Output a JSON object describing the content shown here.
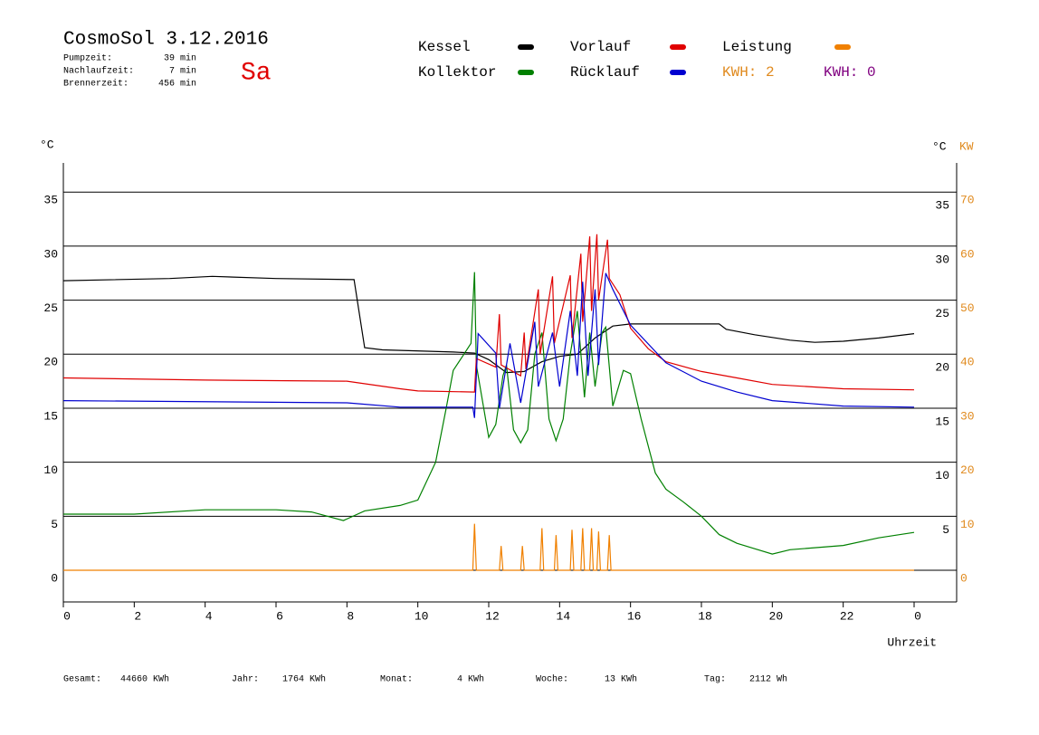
{
  "chart_data": {
    "type": "line",
    "title": "CosmoSol 3.12.2016",
    "weekday": "Sa",
    "stats": [
      {
        "label": "Pumpzeit:",
        "value": "39 min"
      },
      {
        "label": "Nachlaufzeit:",
        "value": "7 min"
      },
      {
        "label": "Brennerzeit:",
        "value": "456 min"
      }
    ],
    "totals": [
      {
        "label": "Gesamt:",
        "value": "44660 KWh"
      },
      {
        "label": "Jahr:",
        "value": "1764 KWh"
      },
      {
        "label": "Monat:",
        "value": "4 KWh"
      },
      {
        "label": "Woche:",
        "value": "13 KWh"
      },
      {
        "label": "Tag:",
        "value": "2112 Wh"
      }
    ],
    "kwh": [
      {
        "text": "KWH: 2",
        "color": "#e08a1e"
      },
      {
        "text": "KWH: 0",
        "color": "#800080"
      }
    ],
    "y_label": "°C",
    "y_right_label": "°C",
    "y2_label": "KW",
    "x_label": "Uhrzeit",
    "xlim": [
      0,
      25.2
    ],
    "xticks": [
      0,
      2,
      4,
      6,
      8,
      10,
      12,
      14,
      16,
      18,
      20,
      22,
      {
        "value": 24,
        "label": "0"
      }
    ],
    "ylim": [
      -2.93,
      37.7
    ],
    "yticks": [
      0,
      5,
      10,
      15,
      20,
      25,
      30,
      35
    ],
    "y_right_ticks": [
      5,
      10,
      15,
      20,
      25,
      30,
      35
    ],
    "y2lim": [
      -5.86,
      75.4
    ],
    "y2ticks": [
      0,
      10,
      20,
      30,
      40,
      50,
      60,
      70
    ],
    "y2_color": "#e08a1e",
    "grid": true,
    "series": [
      {
        "name": "Kessel",
        "color": "#000000",
        "x": [
          0,
          3,
          4.2,
          6,
          8.2,
          8.5,
          9,
          11,
          11.6,
          12,
          12.5,
          13,
          13.5,
          14,
          14.5,
          15,
          15.5,
          16,
          17,
          18.5,
          18.7,
          19.5,
          20.5,
          21.2,
          22,
          23,
          24
        ],
        "values": [
          26.8,
          27.0,
          27.2,
          27.0,
          26.9,
          20.6,
          20.4,
          20.2,
          20.1,
          19.5,
          18.3,
          18.4,
          19.3,
          19.8,
          20.0,
          21.5,
          22.6,
          22.8,
          22.8,
          22.8,
          22.3,
          21.8,
          21.3,
          21.1,
          21.2,
          21.5,
          21.9
        ]
      },
      {
        "name": "Kollektor",
        "color": "#008000",
        "x": [
          0,
          2,
          4,
          6,
          7,
          7.9,
          8.5,
          9.5,
          10,
          10.5,
          10.8,
          11,
          11.3,
          11.5,
          11.6,
          11.65,
          12,
          12.2,
          12.4,
          12.5,
          12.7,
          12.9,
          13.1,
          13.3,
          13.5,
          13.7,
          13.9,
          14.1,
          14.3,
          14.5,
          14.7,
          14.85,
          15,
          15.2,
          15.3,
          15.5,
          15.8,
          16,
          16.3,
          16.7,
          17,
          17.5,
          18,
          18.5,
          19,
          19.5,
          20,
          20.5,
          22,
          23,
          24
        ],
        "values": [
          5.2,
          5.2,
          5.6,
          5.6,
          5.4,
          4.6,
          5.5,
          6.0,
          6.5,
          10.0,
          15.0,
          18.5,
          20.0,
          21.0,
          27.6,
          19.0,
          12.3,
          13.5,
          18.0,
          19.0,
          13.0,
          11.8,
          13.0,
          20.0,
          22.0,
          14.0,
          12.0,
          14.0,
          20.0,
          24.0,
          16.0,
          22.0,
          17.0,
          22.0,
          22.5,
          15.2,
          18.5,
          18.2,
          14.0,
          9.0,
          7.5,
          6.3,
          5.0,
          3.3,
          2.5,
          2.0,
          1.5,
          1.9,
          2.3,
          3.0,
          3.5
        ]
      },
      {
        "name": "Vorlauf",
        "color": "#e00000",
        "x": [
          0,
          4,
          8,
          9.5,
          10,
          11.6,
          11.65,
          12.2,
          12.3,
          12.35,
          12.9,
          13.0,
          13.05,
          13.4,
          13.45,
          13.8,
          13.85,
          14.3,
          14.35,
          14.6,
          14.65,
          14.85,
          14.9,
          15.05,
          15.1,
          15.35,
          15.4,
          15.7,
          16,
          16.5,
          17,
          18,
          19,
          20,
          22,
          24
        ],
        "values": [
          17.8,
          17.6,
          17.5,
          16.8,
          16.6,
          16.5,
          19.6,
          18.8,
          23.7,
          19.0,
          18.0,
          22.0,
          18.6,
          26.0,
          20.0,
          27.2,
          21.0,
          27.3,
          21.5,
          29.3,
          23.0,
          30.9,
          24.0,
          31.1,
          25.0,
          30.6,
          27.0,
          25.5,
          22.4,
          20.5,
          19.3,
          18.4,
          17.8,
          17.2,
          16.8,
          16.7
        ]
      },
      {
        "name": "Rücklauf",
        "color": "#0000d0",
        "x": [
          0,
          8,
          9.5,
          11.55,
          11.6,
          11.7,
          12.2,
          12.3,
          12.6,
          12.9,
          13.3,
          13.4,
          13.8,
          14.0,
          14.3,
          14.5,
          14.65,
          14.8,
          15.0,
          15.1,
          15.3,
          15.5,
          16,
          17,
          18,
          19,
          20,
          22,
          24
        ],
        "values": [
          15.7,
          15.5,
          15.1,
          15.1,
          14.1,
          21.9,
          20.1,
          15.0,
          21.0,
          15.5,
          23.0,
          17.0,
          22.0,
          17.0,
          24.0,
          18.0,
          26.7,
          18.0,
          26.0,
          19.0,
          27.5,
          26.0,
          22.7,
          19.2,
          17.5,
          16.5,
          15.7,
          15.2,
          15.1
        ]
      },
      {
        "name": "Leistung",
        "color": "#f08000",
        "axis": "y2",
        "x": [
          0,
          11.55,
          11.6,
          11.65,
          12.3,
          12.35,
          12.4,
          12.9,
          12.95,
          13,
          13.45,
          13.5,
          13.55,
          13.85,
          13.9,
          13.95,
          14.3,
          14.35,
          14.4,
          14.6,
          14.65,
          14.7,
          14.85,
          14.9,
          14.95,
          15.05,
          15.1,
          15.15,
          15.35,
          15.4,
          15.45,
          24
        ],
        "values": [
          0,
          0,
          8.6,
          0,
          0,
          4.5,
          0,
          0,
          4.5,
          0,
          0,
          7.8,
          0,
          0,
          6.5,
          0,
          0,
          7.5,
          0,
          0,
          7.8,
          0,
          0,
          7.8,
          0,
          0,
          7.2,
          0,
          0,
          6.5,
          0,
          0
        ]
      }
    ]
  }
}
